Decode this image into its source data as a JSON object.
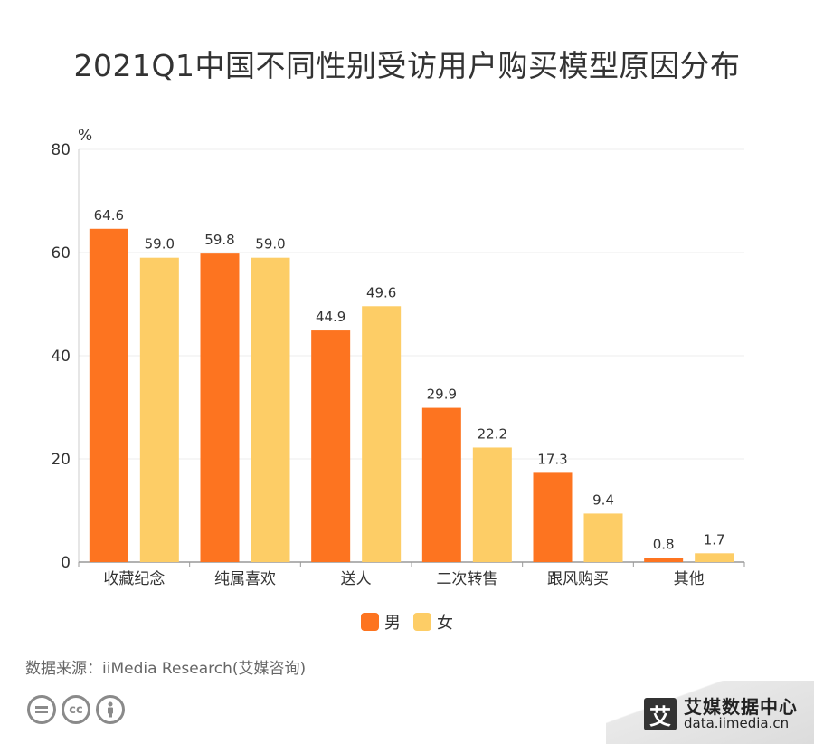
{
  "title": "2021Q1中国不同性别受访用户购买模型原因分布",
  "source_text": "数据来源：iiMedia Research(艾媒咨询)",
  "brand": {
    "logo_char": "艾",
    "name": "艾媒数据中心",
    "url": "data.iimedia.cn"
  },
  "license_icons": [
    "equals-icon",
    "cc-icon",
    "person-icon"
  ],
  "colors": {
    "male": "#fd7420",
    "female": "#fdcd66",
    "axis": "#999999",
    "grid": "#eeeeee",
    "text": "#333333"
  },
  "chart_data": {
    "type": "bar",
    "title": "2021Q1中国不同性别受访用户购买模型原因分布",
    "ylabel": "%",
    "ylim": [
      0,
      80
    ],
    "yticks": [
      0,
      20,
      40,
      60,
      80
    ],
    "grid": true,
    "legend_position": "bottom",
    "categories": [
      "收藏纪念",
      "纯属喜欢",
      "送人",
      "二次转售",
      "跟风购买",
      "其他"
    ],
    "series": [
      {
        "name": "男",
        "values": [
          64.6,
          59.8,
          44.9,
          29.9,
          17.3,
          0.8
        ],
        "color": "#fd7420"
      },
      {
        "name": "女",
        "values": [
          59.0,
          59.0,
          49.6,
          22.2,
          9.4,
          1.7
        ],
        "color": "#fdcd66"
      }
    ],
    "value_labels": [
      [
        "64.6",
        "59.8",
        "44.9",
        "29.9",
        "17.3",
        "0.8"
      ],
      [
        "59.0",
        "59.0",
        "49.6",
        "22.2",
        "9.4",
        "1.7"
      ]
    ]
  }
}
